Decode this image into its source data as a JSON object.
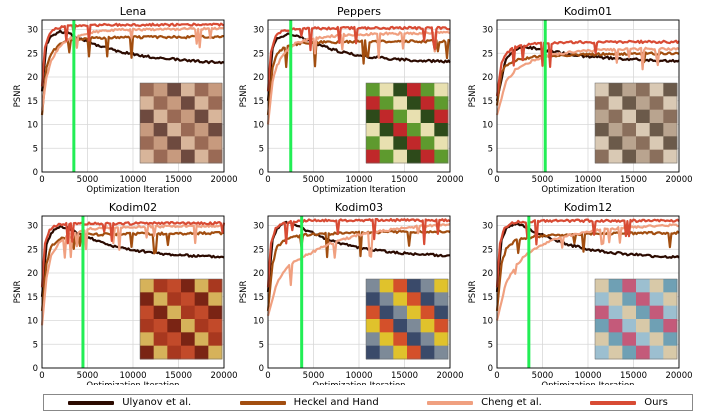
{
  "chart_data": [
    {
      "type": "line",
      "title": "Lena",
      "xlabel": "Optimization Iteration",
      "ylabel": "PSNR",
      "xlim": [
        0,
        20000
      ],
      "ylim": [
        0,
        32
      ],
      "xticks": [
        "0",
        "5000",
        "10000",
        "15000",
        "20000"
      ],
      "yticks": [
        "0",
        "5",
        "10",
        "15",
        "20",
        "25",
        "30"
      ],
      "early_stop_iteration": 3500,
      "image": {
        "name": "lena-thumbnail",
        "palette": [
          "#9a6a55",
          "#c79a7e",
          "#6e4a3f",
          "#d8b59a"
        ]
      },
      "series": [
        {
          "name": "Ulyanov et al.",
          "x": [
            0,
            500,
            1000,
            2000,
            3000,
            4000,
            6000,
            8000,
            10000,
            12000,
            14000,
            16000,
            18000,
            20000
          ],
          "values": [
            17,
            27,
            28.5,
            29.6,
            29.2,
            28.2,
            26.8,
            25.6,
            24.8,
            24.2,
            23.8,
            23.5,
            23.2,
            23.0
          ]
        },
        {
          "name": "Heckel and Hand",
          "x": [
            0,
            500,
            1000,
            2000,
            3000,
            5000,
            8000,
            12000,
            16000,
            20000
          ],
          "values": [
            12,
            22,
            25,
            27,
            27.8,
            28.2,
            28.3,
            28.4,
            28.4,
            28.5
          ]
        },
        {
          "name": "Cheng et al.",
          "x": [
            0,
            500,
            1000,
            2000,
            3000,
            5000,
            7000,
            10000,
            14000,
            20000
          ],
          "values": [
            13,
            20,
            23.5,
            26.5,
            28,
            29.3,
            29.8,
            30.0,
            30.1,
            30.2
          ]
        },
        {
          "name": "Ours",
          "x": [
            0,
            300,
            800,
            1500,
            2500,
            4000,
            8000,
            14000,
            20000
          ],
          "values": [
            18,
            26,
            29,
            30.2,
            30.7,
            30.9,
            31.0,
            31.0,
            31.0
          ]
        }
      ]
    },
    {
      "type": "line",
      "title": "Peppers",
      "xlabel": "Optimization Iteration",
      "ylabel": "PSNR",
      "xlim": [
        0,
        20000
      ],
      "ylim": [
        0,
        32
      ],
      "xticks": [
        "0",
        "5000",
        "10000",
        "15000",
        "20000"
      ],
      "yticks": [
        "0",
        "5",
        "10",
        "15",
        "20",
        "25",
        "30"
      ],
      "early_stop_iteration": 2500,
      "image": {
        "name": "peppers-thumbnail",
        "palette": [
          "#c0282a",
          "#5e9a2e",
          "#e8e0b0",
          "#2d4a1a"
        ]
      },
      "series": [
        {
          "name": "Ulyanov et al.",
          "x": [
            0,
            500,
            1000,
            2000,
            3000,
            4000,
            6000,
            8000,
            10000,
            13000,
            16000,
            20000
          ],
          "values": [
            15,
            26,
            28,
            29.1,
            28.8,
            28,
            26.5,
            25.3,
            24.5,
            23.9,
            23.5,
            23.2
          ]
        },
        {
          "name": "Heckel and Hand",
          "x": [
            0,
            500,
            1000,
            2000,
            4000,
            8000,
            12000,
            16000,
            20000
          ],
          "values": [
            12,
            22,
            25,
            26.5,
            27.2,
            27.4,
            27.5,
            27.5,
            27.6
          ]
        },
        {
          "name": "Cheng et al.",
          "x": [
            0,
            500,
            1000,
            2000,
            3000,
            5000,
            8000,
            12000,
            16000,
            20000
          ],
          "values": [
            10,
            19,
            22.5,
            25.5,
            27,
            28.2,
            28.8,
            29.1,
            29.2,
            29.3
          ]
        },
        {
          "name": "Ours",
          "x": [
            0,
            300,
            800,
            1500,
            2500,
            4000,
            8000,
            14000,
            20000
          ],
          "values": [
            17,
            25,
            28.5,
            29.6,
            30,
            30.2,
            30.3,
            30.3,
            30.3
          ]
        }
      ]
    },
    {
      "type": "line",
      "title": "Kodim01",
      "xlabel": "Optimization Iteration",
      "ylabel": "PSNR",
      "xlim": [
        0,
        20000
      ],
      "ylim": [
        0,
        32
      ],
      "xticks": [
        "0",
        "5000",
        "10000",
        "15000",
        "20000"
      ],
      "yticks": [
        "0",
        "5",
        "10",
        "15",
        "20",
        "25",
        "30"
      ],
      "early_stop_iteration": 5300,
      "image": {
        "name": "kodim01-thumbnail",
        "palette": [
          "#b9a48f",
          "#8a6f5c",
          "#d9c9b4",
          "#6b5a4a"
        ]
      },
      "series": [
        {
          "name": "Ulyanov et al.",
          "x": [
            0,
            1000,
            2000,
            3000,
            4000,
            6000,
            8000,
            10000,
            13000,
            16000,
            20000
          ],
          "values": [
            15,
            24,
            25.8,
            26.3,
            26.1,
            25.4,
            24.8,
            24.3,
            23.9,
            23.6,
            23.4
          ]
        },
        {
          "name": "Heckel and Hand",
          "x": [
            0,
            500,
            1000,
            2000,
            4000,
            8000,
            12000,
            16000,
            20000
          ],
          "values": [
            14,
            21,
            22.5,
            23.5,
            24.2,
            24.6,
            24.8,
            24.9,
            25.0
          ]
        },
        {
          "name": "Cheng et al.",
          "x": [
            0,
            1000,
            2000,
            4000,
            6000,
            8000,
            12000,
            16000,
            20000
          ],
          "values": [
            12,
            19,
            21.5,
            23.5,
            24.6,
            25.2,
            25.7,
            25.9,
            26.0
          ]
        },
        {
          "name": "Ours",
          "x": [
            0,
            500,
            1000,
            2000,
            4000,
            8000,
            14000,
            20000
          ],
          "values": [
            16,
            23,
            25,
            26.3,
            27,
            27.3,
            27.4,
            27.4
          ]
        }
      ]
    },
    {
      "type": "line",
      "title": "Kodim02",
      "xlabel": "Optimization Iteration",
      "ylabel": "PSNR",
      "xlim": [
        0,
        20000
      ],
      "ylim": [
        0,
        32
      ],
      "xticks": [
        "0",
        "5000",
        "10000",
        "15000",
        "20000"
      ],
      "yticks": [
        "0",
        "5",
        "10",
        "15",
        "20",
        "25",
        "30"
      ],
      "early_stop_iteration": 4500,
      "image": {
        "name": "kodim02-thumbnail",
        "palette": [
          "#a8381f",
          "#c24a2a",
          "#7a2414",
          "#d6b25a"
        ]
      },
      "series": [
        {
          "name": "Ulyanov et al.",
          "x": [
            0,
            500,
            1000,
            2000,
            3000,
            4000,
            6000,
            8000,
            10000,
            13000,
            16000,
            20000
          ],
          "values": [
            15,
            26,
            28.5,
            29.8,
            29.3,
            28.2,
            26.8,
            25.6,
            24.8,
            24.1,
            23.7,
            23.4
          ]
        },
        {
          "name": "Heckel and Hand",
          "x": [
            0,
            500,
            1000,
            2000,
            4000,
            8000,
            12000,
            16000,
            20000
          ],
          "values": [
            12,
            22,
            25.5,
            27.2,
            28,
            28.2,
            28.3,
            28.3,
            28.4
          ]
        },
        {
          "name": "Cheng et al.",
          "x": [
            0,
            500,
            1000,
            2000,
            3000,
            5000,
            8000,
            12000,
            16000,
            20000
          ],
          "values": [
            9,
            19,
            23.5,
            26.8,
            28.2,
            29.2,
            29.6,
            29.8,
            29.9,
            29.9
          ]
        },
        {
          "name": "Ours",
          "x": [
            0,
            300,
            800,
            1500,
            2500,
            4000,
            8000,
            14000,
            20000
          ],
          "values": [
            17,
            26,
            29,
            30,
            30.3,
            30.4,
            30.4,
            30.5,
            30.5
          ]
        }
      ]
    },
    {
      "type": "line",
      "title": "Kodim03",
      "xlabel": "Optimization Iteration",
      "ylabel": "PSNR",
      "xlim": [
        0,
        20000
      ],
      "ylim": [
        0,
        32
      ],
      "xticks": [
        "0",
        "5000",
        "10000",
        "15000",
        "20000"
      ],
      "yticks": [
        "0",
        "5",
        "10",
        "15",
        "20",
        "25",
        "30"
      ],
      "early_stop_iteration": 3700,
      "image": {
        "name": "kodim03-thumbnail",
        "palette": [
          "#7d8a98",
          "#e0c22c",
          "#d4502a",
          "#3a4a6a"
        ]
      },
      "series": [
        {
          "name": "Ulyanov et al.",
          "x": [
            0,
            500,
            1000,
            2000,
            3000,
            4000,
            6000,
            8000,
            10000,
            13000,
            16000,
            20000
          ],
          "values": [
            16,
            27,
            29.5,
            30.6,
            30.2,
            29.2,
            27.5,
            26.2,
            25.3,
            24.5,
            24.0,
            23.6
          ]
        },
        {
          "name": "Heckel and Hand",
          "x": [
            0,
            500,
            1000,
            2000,
            4000,
            8000,
            12000,
            16000,
            20000
          ],
          "values": [
            12,
            22,
            25.5,
            27.2,
            28,
            28.4,
            28.6,
            28.7,
            28.8
          ]
        },
        {
          "name": "Cheng et al.",
          "x": [
            0,
            1000,
            2000,
            3000,
            5000,
            7000,
            10000,
            13000,
            16000,
            20000
          ],
          "values": [
            11,
            18,
            21,
            22.5,
            24.5,
            26.3,
            28,
            29,
            29.7,
            30.2
          ]
        },
        {
          "name": "Ours",
          "x": [
            0,
            300,
            800,
            1500,
            2500,
            4000,
            8000,
            14000,
            20000
          ],
          "values": [
            17,
            26,
            29.3,
            30.4,
            30.8,
            31.0,
            31.1,
            31.1,
            31.1
          ]
        }
      ]
    },
    {
      "type": "line",
      "title": "Kodim12",
      "xlabel": "Optimization Iteration",
      "ylabel": "PSNR",
      "xlim": [
        0,
        20000
      ],
      "ylim": [
        0,
        32
      ],
      "xticks": [
        "0",
        "5000",
        "10000",
        "15000",
        "20000"
      ],
      "yticks": [
        "0",
        "5",
        "10",
        "15",
        "20",
        "25",
        "30"
      ],
      "early_stop_iteration": 3500,
      "image": {
        "name": "kodim12-thumbnail",
        "palette": [
          "#9cbfd0",
          "#d8c9a8",
          "#6fa0b4",
          "#c45a7a"
        ]
      },
      "series": [
        {
          "name": "Ulyanov et al.",
          "x": [
            0,
            500,
            1000,
            2000,
            3000,
            4000,
            6000,
            8000,
            10000,
            13000,
            16000,
            20000
          ],
          "values": [
            16,
            27,
            29.3,
            30.4,
            29.9,
            28.8,
            27.2,
            25.9,
            25.0,
            24.2,
            23.7,
            23.3
          ]
        },
        {
          "name": "Heckel and Hand",
          "x": [
            0,
            500,
            1000,
            2000,
            4000,
            8000,
            12000,
            16000,
            20000
          ],
          "values": [
            12,
            22,
            25,
            26.8,
            27.7,
            28.1,
            28.3,
            28.4,
            28.5
          ]
        },
        {
          "name": "Cheng et al.",
          "x": [
            0,
            1000,
            2000,
            3000,
            5000,
            7000,
            10000,
            13000,
            16000,
            20000
          ],
          "values": [
            10,
            18,
            21.5,
            23.5,
            26,
            27.5,
            28.8,
            29.4,
            29.8,
            30.1
          ]
        },
        {
          "name": "Ours",
          "x": [
            0,
            300,
            800,
            1500,
            2500,
            4000,
            8000,
            14000,
            20000
          ],
          "values": [
            17,
            26,
            29.3,
            30.4,
            30.8,
            30.9,
            31.0,
            31.0,
            31.0
          ]
        }
      ]
    }
  ],
  "legend": [
    {
      "label": "Ulyanov et al.",
      "color": "#2b0a00"
    },
    {
      "label": "Heckel and Hand",
      "color": "#a24e10"
    },
    {
      "label": "Cheng et al.",
      "color": "#f0a080"
    },
    {
      "label": "Ours",
      "color": "#d84b34"
    }
  ],
  "colors": {
    "Ulyanov et al.": "#2b0a00",
    "Heckel and Hand": "#a24e10",
    "Cheng et al.": "#f0a080",
    "Ours": "#d84b34",
    "early_stop": "#22ee55",
    "grid": "#d8d8d8"
  }
}
